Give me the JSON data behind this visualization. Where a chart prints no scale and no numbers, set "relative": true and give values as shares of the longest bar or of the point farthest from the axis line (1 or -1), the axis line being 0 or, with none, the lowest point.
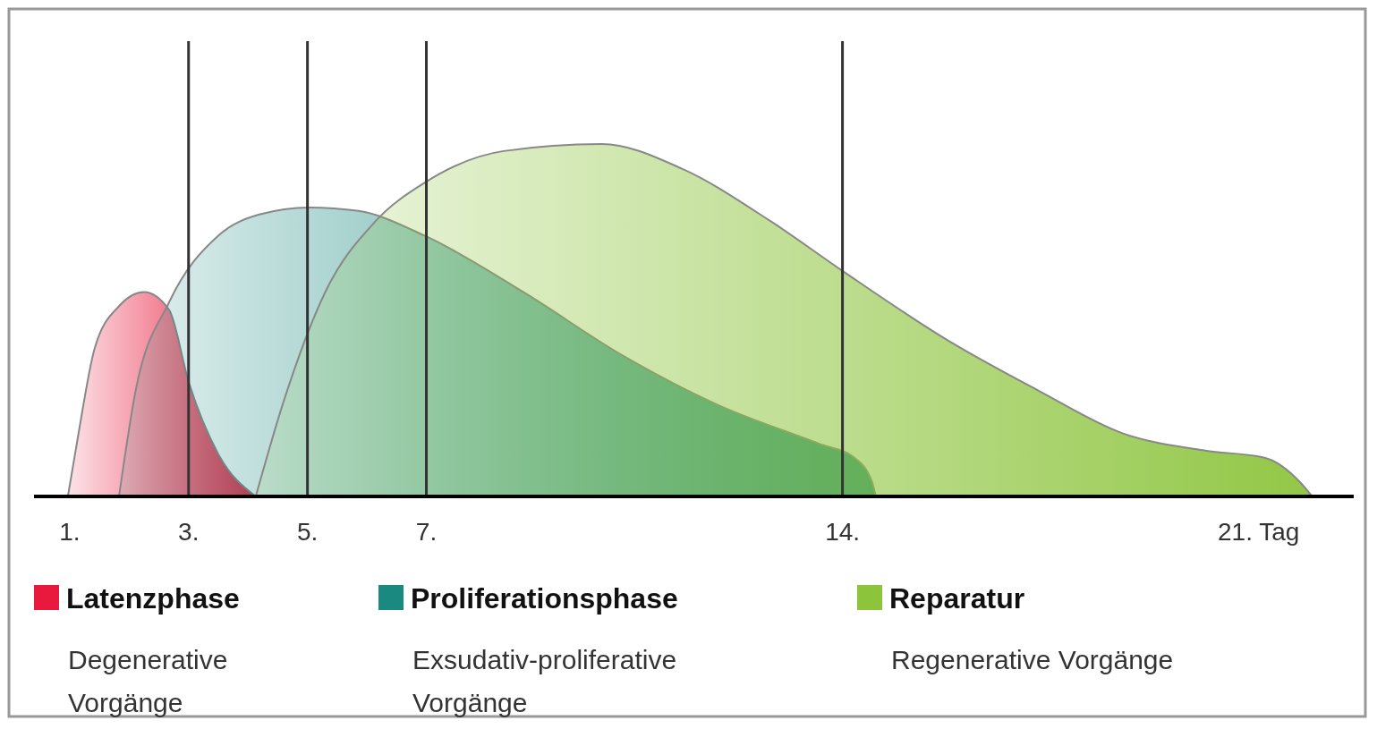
{
  "chart_data": {
    "type": "area",
    "relative": true,
    "xlim": [
      0.4,
      22.6
    ],
    "xticks": [
      {
        "value": 1,
        "label": "1."
      },
      {
        "value": 3,
        "label": "3."
      },
      {
        "value": 5,
        "label": "5."
      },
      {
        "value": 7,
        "label": "7."
      },
      {
        "value": 14,
        "label": "14."
      },
      {
        "value": 21,
        "label": "21. Tag"
      }
    ],
    "series": [
      {
        "name": "Latenzphase",
        "color": "#e8193c",
        "x": [
          0.97,
          1.14,
          1.42,
          1.83,
          2.25,
          2.67,
          3.01,
          3.5,
          4.13
        ],
        "values": [
          0,
          0.17,
          0.42,
          0.54,
          0.58,
          0.53,
          0.32,
          0.12,
          0
        ]
      },
      {
        "name": "Proliferationsphase",
        "color": "#1a8a80",
        "x": [
          1.83,
          2.11,
          2.67,
          3.5,
          4.19,
          5.03,
          5.86,
          6.97,
          8.63,
          10.3,
          11.9,
          13.6,
          14.2,
          14.5,
          14.56
        ],
        "values": [
          0,
          0.3,
          0.55,
          0.74,
          0.8,
          0.82,
          0.81,
          0.74,
          0.58,
          0.4,
          0.26,
          0.15,
          0.11,
          0.04,
          0
        ]
      },
      {
        "name": "Reparatur",
        "color": "#8cc43c",
        "x": [
          4.13,
          4.6,
          5.3,
          6.14,
          6.97,
          8.3,
          9.95,
          11.3,
          12.8,
          14,
          15.8,
          17.3,
          18.7,
          20.1,
          21.1,
          21.7,
          21.9
        ],
        "values": [
          0,
          0.27,
          0.58,
          0.78,
          0.89,
          0.98,
          1,
          0.93,
          0.78,
          0.64,
          0.44,
          0.3,
          0.18,
          0.13,
          0.11,
          0.04,
          0
        ]
      }
    ],
    "ref_lines": [
      {
        "axis": "x",
        "value": 3,
        "color": "#333333"
      },
      {
        "axis": "x",
        "value": 5,
        "color": "#333333"
      },
      {
        "axis": "x",
        "value": 7,
        "color": "#333333"
      },
      {
        "axis": "x",
        "value": 14,
        "color": "#333333"
      }
    ],
    "legend": "bottom",
    "annotations": [
      "Degenerative Vorgänge",
      "Exsudativ-proliferative Vorgänge",
      "Regenerative Vorgänge"
    ]
  }
}
